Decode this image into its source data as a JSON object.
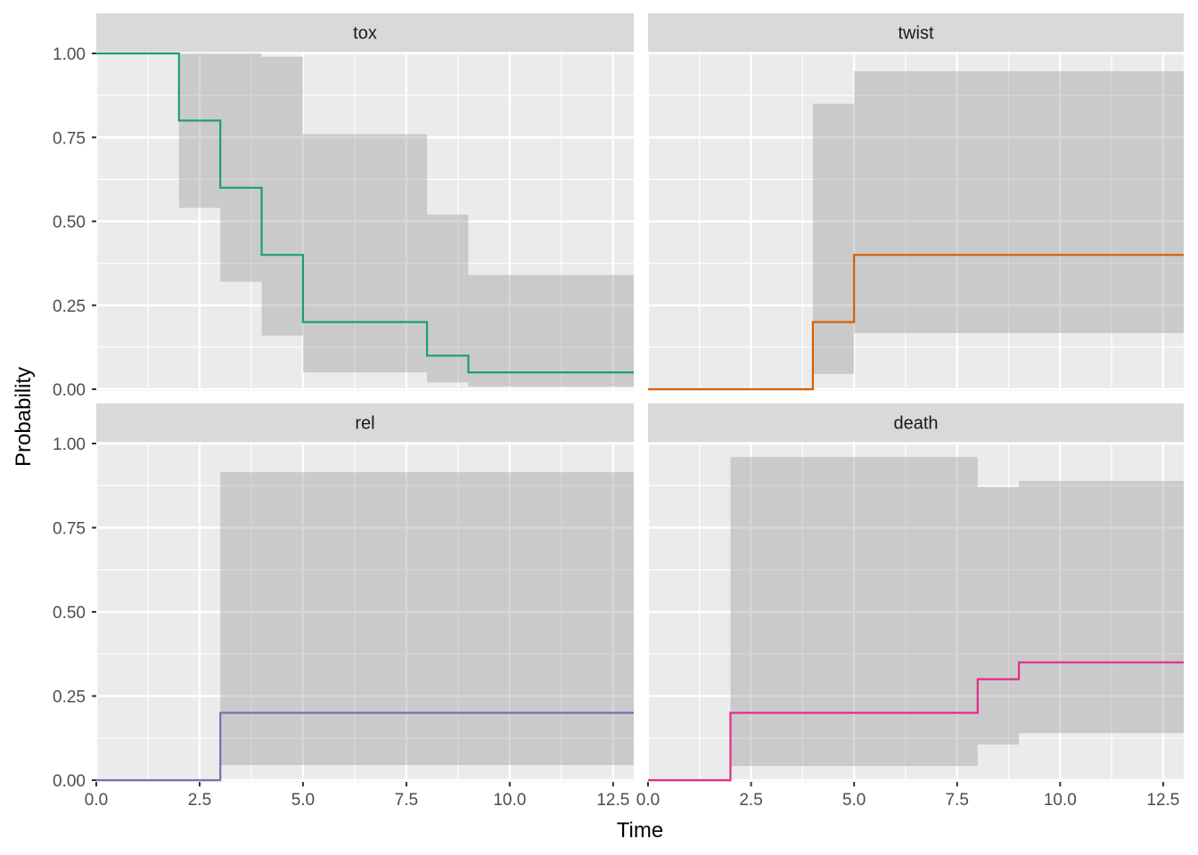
{
  "chart_data": {
    "type": "line",
    "subtype": "step with confidence ribbons, faceted 2x2",
    "xlabel": "Time",
    "ylabel": "Probability",
    "xlim": [
      0,
      13
    ],
    "ylim": [
      0,
      1
    ],
    "x_ticks": [
      "0.0",
      "2.5",
      "5.0",
      "7.5",
      "10.0",
      "12.5"
    ],
    "x_tick_values": [
      0,
      2.5,
      5,
      7.5,
      10,
      12.5
    ],
    "y_ticks": [
      "0.00",
      "0.25",
      "0.50",
      "0.75",
      "1.00"
    ],
    "y_tick_values": [
      0,
      0.25,
      0.5,
      0.75,
      1
    ],
    "grid": true,
    "legend": "none",
    "panels": [
      {
        "name": "tox",
        "color": "#1b9e77",
        "steps": [
          {
            "t0": 0,
            "t1": 2,
            "est": 1.0,
            "lower": 1.0,
            "upper": 1.0
          },
          {
            "t0": 2,
            "t1": 3,
            "est": 0.8,
            "lower": 0.54,
            "upper": 1.0
          },
          {
            "t0": 3,
            "t1": 4,
            "est": 0.6,
            "lower": 0.32,
            "upper": 1.0
          },
          {
            "t0": 4,
            "t1": 5,
            "est": 0.4,
            "lower": 0.16,
            "upper": 0.99
          },
          {
            "t0": 5,
            "t1": 8,
            "est": 0.2,
            "lower": 0.05,
            "upper": 0.76
          },
          {
            "t0": 8,
            "t1": 9,
            "est": 0.1,
            "lower": 0.02,
            "upper": 0.52
          },
          {
            "t0": 9,
            "t1": 13,
            "est": 0.05,
            "lower": 0.008,
            "upper": 0.34
          }
        ]
      },
      {
        "name": "twist",
        "color": "#d95f02",
        "steps": [
          {
            "t0": 0,
            "t1": 4,
            "est": 0,
            "lower": 0,
            "upper": 0
          },
          {
            "t0": 4,
            "t1": 5,
            "est": 0.2,
            "lower": 0.045,
            "upper": 0.85
          },
          {
            "t0": 5,
            "t1": 13,
            "est": 0.4,
            "lower": 0.167,
            "upper": 0.947
          }
        ]
      },
      {
        "name": "rel",
        "color": "#7570b3",
        "steps": [
          {
            "t0": 0,
            "t1": 3,
            "est": 0,
            "lower": 0,
            "upper": 0
          },
          {
            "t0": 3,
            "t1": 13,
            "est": 0.2,
            "lower": 0.045,
            "upper": 0.915
          }
        ]
      },
      {
        "name": "death",
        "color": "#e7298a",
        "steps": [
          {
            "t0": 0,
            "t1": 2,
            "est": 0,
            "lower": 0,
            "upper": 0
          },
          {
            "t0": 2,
            "t1": 8,
            "est": 0.2,
            "lower": 0.042,
            "upper": 0.96
          },
          {
            "t0": 8,
            "t1": 9,
            "est": 0.3,
            "lower": 0.106,
            "upper": 0.87
          },
          {
            "t0": 9,
            "t1": 13,
            "est": 0.35,
            "lower": 0.14,
            "upper": 0.889
          }
        ]
      }
    ]
  }
}
